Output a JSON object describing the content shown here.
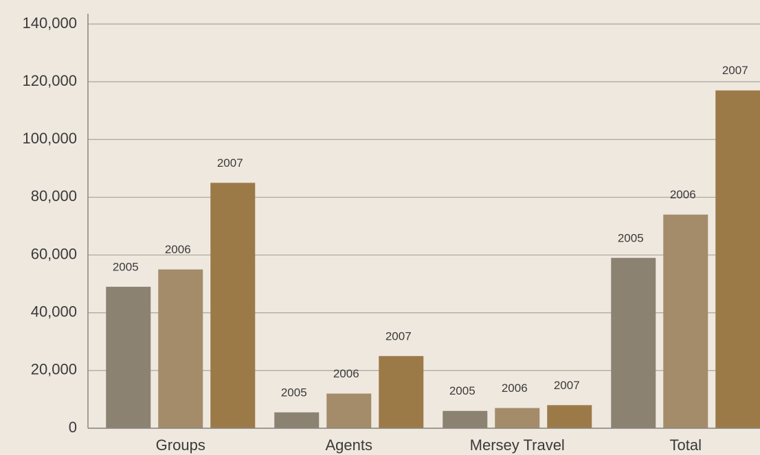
{
  "chart_data": {
    "type": "bar",
    "categories": [
      "Groups",
      "Agents",
      "Mersey Travel",
      "Total"
    ],
    "series": [
      {
        "name": "2005",
        "color": "#8c8272",
        "values": [
          49000,
          5500,
          6000,
          59000
        ]
      },
      {
        "name": "2006",
        "color": "#a48c6a",
        "values": [
          55000,
          12000,
          7000,
          74000
        ]
      },
      {
        "name": "2007",
        "color": "#9c7a48",
        "values": [
          85000,
          25000,
          8000,
          117000
        ]
      }
    ],
    "ylim": [
      0,
      140000
    ],
    "yticks": [
      0,
      {
        "value": 20000,
        "label": "20,000"
      },
      {
        "value": 40000,
        "label": "40,000"
      },
      {
        "value": 60000,
        "label": "60,000"
      },
      {
        "value": 80000,
        "label": "80,000"
      },
      {
        "value": 100000,
        "label": "100,000"
      },
      {
        "value": 120000,
        "label": "120,000"
      },
      {
        "value": 140000,
        "label": "140,000"
      }
    ],
    "grid": true
  }
}
